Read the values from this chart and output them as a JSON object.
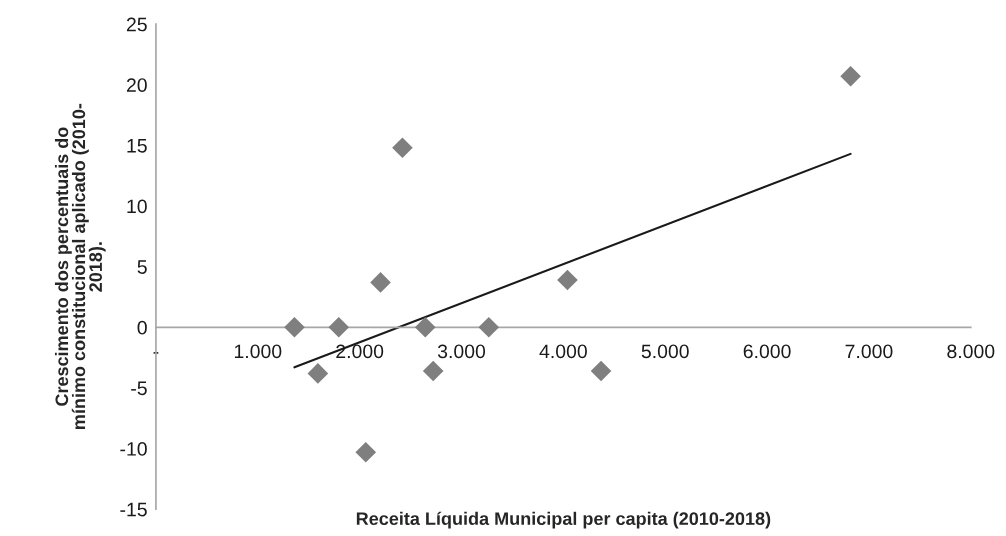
{
  "chart_data": {
    "type": "scatter",
    "xlabel": "Receita Líquida Municipal per capita (2010-2018)",
    "ylabel": "Crescimento dos percentuais do\nmínimo constitucional aplicado (2010-\n2018).",
    "series": [
      {
        "color": "#7f7f7f",
        "marker": "diamond",
        "x": [
          1360,
          1795,
          2644,
          3268,
          1590,
          2722,
          4370,
          2060,
          2205,
          2420,
          4040,
          6820
        ],
        "values": [
          0,
          0,
          0,
          0,
          -3.8,
          -3.6,
          -3.6,
          -10.3,
          3.7,
          14.8,
          3.9,
          20.7
        ]
      },
      {
        "type": "line",
        "color": "#1a1a1a",
        "line_style": "solid",
        "x": [
          1360,
          6820
        ],
        "values": [
          -3.3,
          14.3
        ]
      }
    ],
    "xlim": [
      0,
      8000
    ],
    "xticks": [
      {
        "value": 0,
        "label": "-"
      },
      {
        "value": 1000,
        "label": "1.000"
      },
      {
        "value": 2000,
        "label": "2.000"
      },
      {
        "value": 3000,
        "label": "3.000"
      },
      {
        "value": 4000,
        "label": "4.000"
      },
      {
        "value": 5000,
        "label": "5.000"
      },
      {
        "value": 6000,
        "label": "6.000"
      },
      {
        "value": 7000,
        "label": "7.000"
      },
      {
        "value": 8000,
        "label": "8.000"
      }
    ],
    "ylim": [
      -15,
      25
    ],
    "yticks": [
      -15,
      -10,
      -5,
      0,
      5,
      10,
      15,
      20,
      25
    ],
    "grid": false,
    "legend": false
  }
}
